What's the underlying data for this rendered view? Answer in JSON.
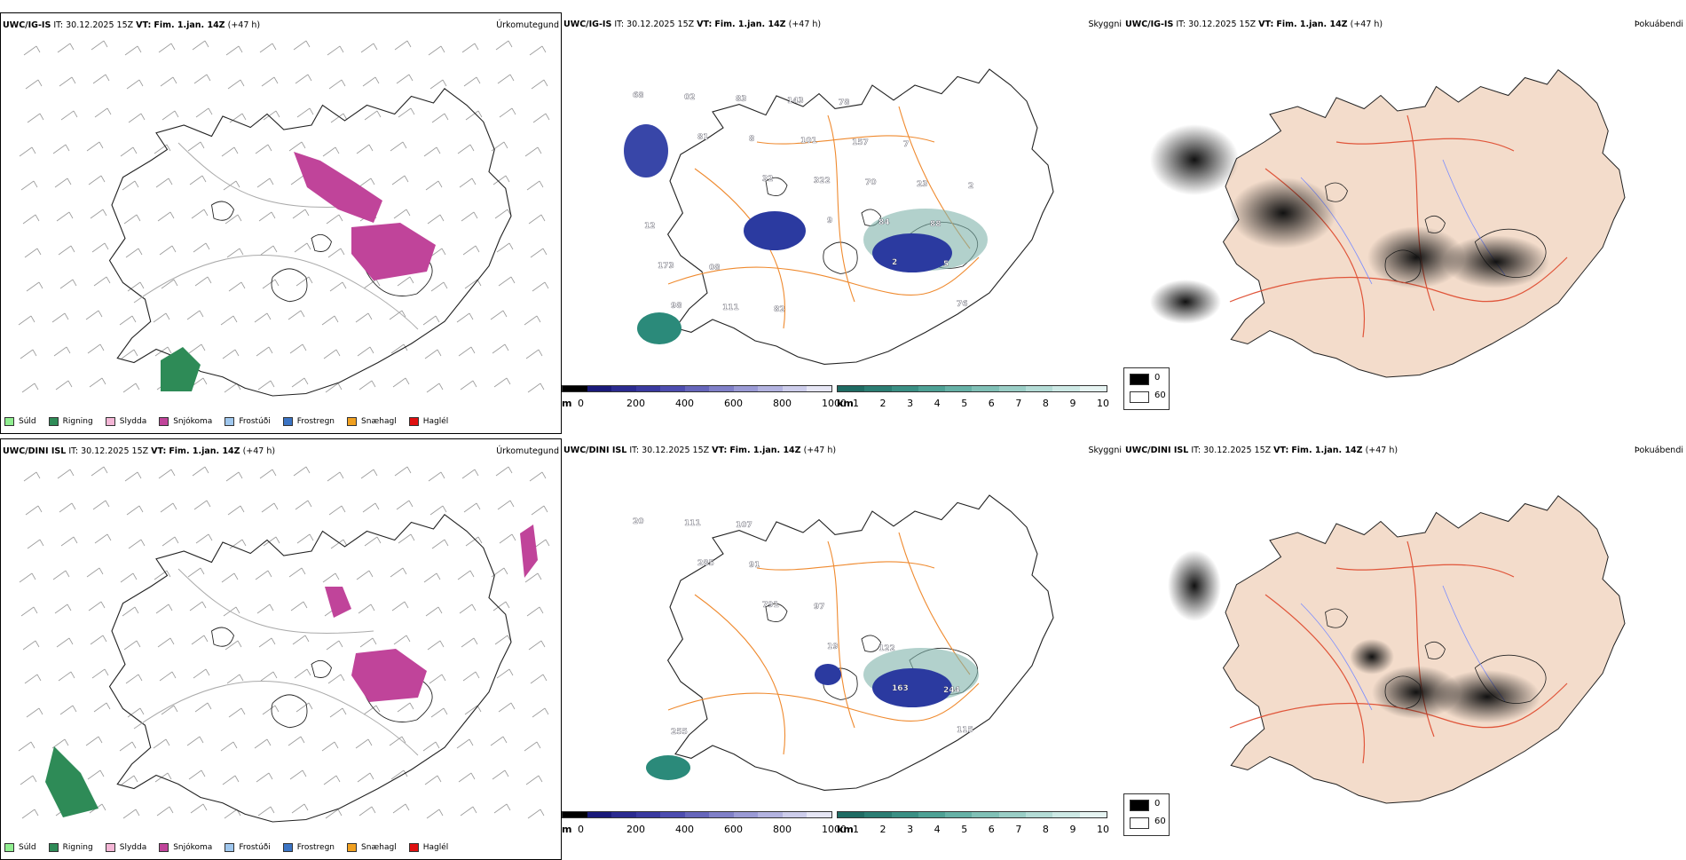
{
  "rows": [
    {
      "model": "UWC/IG-IS",
      "it_label": "IT:",
      "it_value": "30.12.2025 15Z",
      "vt_label": "VT:",
      "vt_value": "Fim. 1.jan. 14Z",
      "lead": "(+47 h)",
      "precip_title": "Úrkomutegund",
      "vis_title": "Skyggni",
      "fog_title": "Þokuábendi",
      "vis_labels": [
        "68",
        "81",
        "32",
        "9",
        "2",
        "76",
        "02",
        "8",
        "322",
        "84",
        "5",
        "98",
        "83",
        "101",
        "70",
        "88",
        "173",
        "111",
        "143",
        "157",
        "23",
        "12",
        "08",
        "82",
        "78",
        "7",
        "2"
      ]
    },
    {
      "model": "UWC/DINI ISL",
      "it_label": "IT:",
      "it_value": "30.12.2025 15Z",
      "vt_label": "VT:",
      "vt_value": "Fim. 1.jan. 14Z",
      "lead": "(+47 h)",
      "precip_title": "Úrkomutegund",
      "vis_title": "Skyggni",
      "fog_title": "Þokuábendi",
      "vis_labels": [
        "20",
        "285",
        "791",
        "19",
        "163",
        "115",
        "111",
        "91",
        "97",
        "122",
        "244",
        "255",
        "107"
      ]
    }
  ],
  "precip_legend": [
    {
      "label": "Súld",
      "color": "#90ee90"
    },
    {
      "label": "Rigning",
      "color": "#2e8b57"
    },
    {
      "label": "Slydda",
      "color": "#f4b6d6"
    },
    {
      "label": "Snjókoma",
      "color": "#c0449a"
    },
    {
      "label": "Frostúði",
      "color": "#9fc7ee"
    },
    {
      "label": "Frostregn",
      "color": "#3b74c4"
    },
    {
      "label": "Snæhagl",
      "color": "#f0a020"
    },
    {
      "label": "Haglél",
      "color": "#e01010"
    }
  ],
  "cloud_bar": {
    "unit": "m",
    "ticks": [
      "0",
      "200",
      "400",
      "600",
      "800",
      "1000"
    ]
  },
  "vis_bar": {
    "unit": "km",
    "ticks": [
      "1",
      "2",
      "3",
      "4",
      "5",
      "6",
      "7",
      "8",
      "9",
      "10"
    ]
  },
  "fog_scale": {
    "labels": [
      "0",
      "60"
    ]
  }
}
